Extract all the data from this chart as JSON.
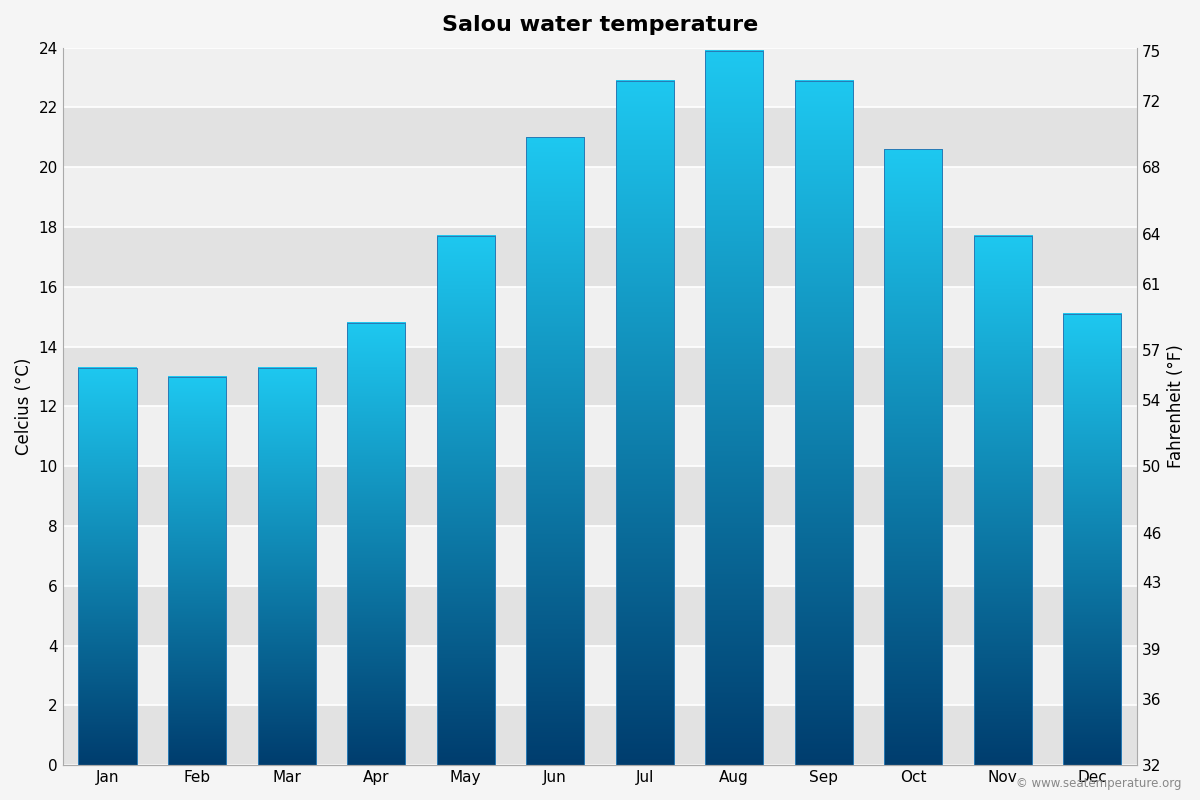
{
  "title": "Salou water temperature",
  "months": [
    "Jan",
    "Feb",
    "Mar",
    "Apr",
    "May",
    "Jun",
    "Jul",
    "Aug",
    "Sep",
    "Oct",
    "Nov",
    "Dec"
  ],
  "temps_c": [
    13.3,
    13.0,
    13.3,
    14.8,
    17.7,
    21.0,
    22.9,
    23.9,
    22.9,
    20.6,
    17.7,
    15.1
  ],
  "ylabel_left": "Celcius (°C)",
  "ylabel_right": "Fahrenheit (°F)",
  "ylim_c": [
    0,
    24
  ],
  "yticks_c": [
    0,
    2,
    4,
    6,
    8,
    10,
    12,
    14,
    16,
    18,
    20,
    22,
    24
  ],
  "yticks_f": [
    32,
    36,
    39,
    43,
    46,
    50,
    54,
    57,
    61,
    64,
    68,
    72,
    75
  ],
  "color_top": "#1EC8F0",
  "color_bottom": "#003D6E",
  "background_color": "#f5f5f5",
  "plot_bg_color_light": "#f0f0f0",
  "plot_bg_color_dark": "#e2e2e2",
  "grid_color": "#ffffff",
  "bar_edge_color": "#2a7ab5",
  "title_fontsize": 16,
  "axis_fontsize": 12,
  "tick_fontsize": 11,
  "copyright_text": "© www.seatemperature.org",
  "bar_width": 0.65
}
